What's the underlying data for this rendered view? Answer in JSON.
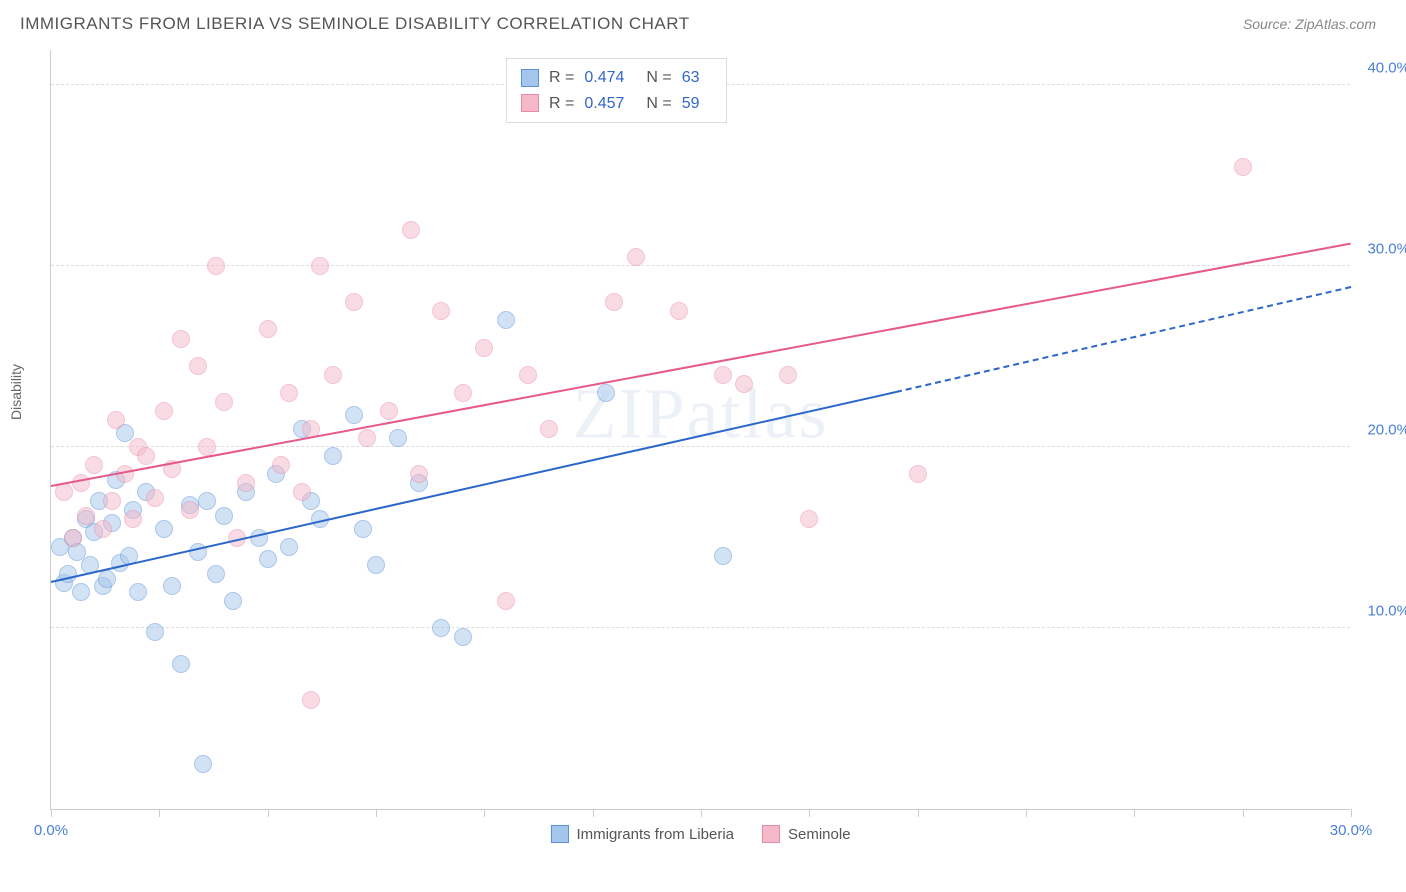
{
  "header": {
    "title": "IMMIGRANTS FROM LIBERIA VS SEMINOLE DISABILITY CORRELATION CHART",
    "source": "Source: ZipAtlas.com"
  },
  "watermark": "ZIPatlas",
  "chart": {
    "type": "scatter",
    "y_axis_label": "Disability",
    "background_color": "#ffffff",
    "grid_color": "#dddddd",
    "axis_color": "#cccccc",
    "tick_label_color": "#4a7fd6",
    "xlim": [
      0,
      30
    ],
    "ylim": [
      0,
      42
    ],
    "x_ticks": [
      0,
      2.5,
      5,
      7.5,
      10,
      12.5,
      15,
      17.5,
      20,
      22.5,
      25,
      27.5,
      30
    ],
    "x_tick_labels": {
      "0": "0.0%",
      "30": "30.0%"
    },
    "y_gridlines": [
      10,
      20,
      30,
      40
    ],
    "y_tick_labels": {
      "10": "10.0%",
      "20": "20.0%",
      "30": "30.0%",
      "40": "40.0%"
    },
    "marker_radius": 9,
    "marker_opacity": 0.5,
    "series": [
      {
        "name": "Immigrants from Liberia",
        "fill_color": "#a4c6ed",
        "stroke_color": "#5b8fd6",
        "line_color": "#2b67c9",
        "R": "0.474",
        "N": "63",
        "trend": {
          "x1": 0,
          "y1": 12.5,
          "x2": 19.5,
          "y2": 23.0,
          "dash_x2": 30,
          "dash_y2": 28.8
        },
        "points": [
          [
            0.2,
            14.5
          ],
          [
            0.3,
            12.5
          ],
          [
            0.4,
            13.0
          ],
          [
            0.5,
            15.0
          ],
          [
            0.6,
            14.2
          ],
          [
            0.7,
            12.0
          ],
          [
            0.8,
            16.0
          ],
          [
            0.9,
            13.5
          ],
          [
            1.0,
            15.3
          ],
          [
            1.1,
            17.0
          ],
          [
            1.2,
            12.3
          ],
          [
            1.3,
            12.7
          ],
          [
            1.4,
            15.8
          ],
          [
            1.5,
            18.2
          ],
          [
            1.6,
            13.6
          ],
          [
            1.7,
            20.8
          ],
          [
            1.8,
            14.0
          ],
          [
            1.9,
            16.5
          ],
          [
            2.0,
            12.0
          ],
          [
            2.2,
            17.5
          ],
          [
            2.4,
            9.8
          ],
          [
            2.6,
            15.5
          ],
          [
            2.8,
            12.3
          ],
          [
            3.0,
            8.0
          ],
          [
            3.2,
            16.8
          ],
          [
            3.4,
            14.2
          ],
          [
            3.5,
            2.5
          ],
          [
            3.6,
            17.0
          ],
          [
            3.8,
            13.0
          ],
          [
            4.0,
            16.2
          ],
          [
            4.2,
            11.5
          ],
          [
            4.5,
            17.5
          ],
          [
            4.8,
            15.0
          ],
          [
            5.0,
            13.8
          ],
          [
            5.2,
            18.5
          ],
          [
            5.5,
            14.5
          ],
          [
            5.8,
            21.0
          ],
          [
            6.0,
            17.0
          ],
          [
            6.2,
            16.0
          ],
          [
            6.5,
            19.5
          ],
          [
            7.0,
            21.8
          ],
          [
            7.2,
            15.5
          ],
          [
            7.5,
            13.5
          ],
          [
            8.0,
            20.5
          ],
          [
            8.5,
            18.0
          ],
          [
            9.0,
            10.0
          ],
          [
            9.5,
            9.5
          ],
          [
            10.5,
            27.0
          ],
          [
            12.8,
            23.0
          ],
          [
            15.5,
            14.0
          ]
        ]
      },
      {
        "name": "Seminole",
        "fill_color": "#f5b8c8",
        "stroke_color": "#e88ba6",
        "line_color": "#e55a8a",
        "R": "0.457",
        "N": "59",
        "trend": {
          "x1": 0,
          "y1": 17.8,
          "x2": 30,
          "y2": 31.2
        },
        "points": [
          [
            0.3,
            17.5
          ],
          [
            0.5,
            15.0
          ],
          [
            0.7,
            18.0
          ],
          [
            0.8,
            16.2
          ],
          [
            1.0,
            19.0
          ],
          [
            1.2,
            15.5
          ],
          [
            1.4,
            17.0
          ],
          [
            1.5,
            21.5
          ],
          [
            1.7,
            18.5
          ],
          [
            1.9,
            16.0
          ],
          [
            2.0,
            20.0
          ],
          [
            2.2,
            19.5
          ],
          [
            2.4,
            17.2
          ],
          [
            2.6,
            22.0
          ],
          [
            2.8,
            18.8
          ],
          [
            3.0,
            26.0
          ],
          [
            3.2,
            16.5
          ],
          [
            3.4,
            24.5
          ],
          [
            3.6,
            20.0
          ],
          [
            3.8,
            30.0
          ],
          [
            4.0,
            22.5
          ],
          [
            4.3,
            15.0
          ],
          [
            4.5,
            18.0
          ],
          [
            5.0,
            26.5
          ],
          [
            5.3,
            19.0
          ],
          [
            5.5,
            23.0
          ],
          [
            5.8,
            17.5
          ],
          [
            6.0,
            21.0
          ],
          [
            6.2,
            30.0
          ],
          [
            6.5,
            24.0
          ],
          [
            6.0,
            6.0
          ],
          [
            7.0,
            28.0
          ],
          [
            7.3,
            20.5
          ],
          [
            7.8,
            22.0
          ],
          [
            8.3,
            32.0
          ],
          [
            8.5,
            18.5
          ],
          [
            9.0,
            27.5
          ],
          [
            9.5,
            23.0
          ],
          [
            10.0,
            25.5
          ],
          [
            10.5,
            11.5
          ],
          [
            11.0,
            24.0
          ],
          [
            11.5,
            21.0
          ],
          [
            13.0,
            28.0
          ],
          [
            13.5,
            30.5
          ],
          [
            14.5,
            27.5
          ],
          [
            15.5,
            24.0
          ],
          [
            16.0,
            23.5
          ],
          [
            17.0,
            24.0
          ],
          [
            17.5,
            16.0
          ],
          [
            20.0,
            18.5
          ],
          [
            27.5,
            35.5
          ]
        ]
      }
    ],
    "stat_legend_labels": {
      "R": "R =",
      "N": "N ="
    },
    "bottom_legend_labels": [
      "Immigrants from Liberia",
      "Seminole"
    ]
  }
}
